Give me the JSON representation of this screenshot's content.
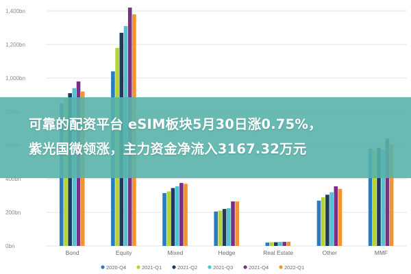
{
  "chart_data": {
    "type": "bar",
    "categories": [
      "Bond",
      "Equity",
      "Mixed",
      "Hedge",
      "Real Estate",
      "Other",
      "MMF"
    ],
    "series": [
      {
        "name": "2020-Q4",
        "color": "#2a7cc0",
        "values": [
          850,
          1040,
          315,
          205,
          20,
          270,
          580
        ]
      },
      {
        "name": "2021-Q1",
        "color": "#b6d334",
        "values": [
          880,
          1180,
          325,
          210,
          22,
          290,
          570
        ]
      },
      {
        "name": "2021-Q2",
        "color": "#203a5c",
        "values": [
          910,
          1270,
          345,
          220,
          22,
          305,
          585
        ]
      },
      {
        "name": "2021-Q3",
        "color": "#54c1d3",
        "values": [
          940,
          1310,
          355,
          225,
          24,
          320,
          575
        ]
      },
      {
        "name": "2021-Q4",
        "color": "#7a2f87",
        "values": [
          980,
          1420,
          375,
          265,
          24,
          355,
          640
        ]
      },
      {
        "name": "2022-Q1",
        "color": "#f39433",
        "values": [
          920,
          1380,
          370,
          265,
          25,
          340,
          605
        ]
      }
    ],
    "yticks": [
      "0bn",
      "200bn",
      "400bn",
      "600bn",
      "800bn",
      "1,000bn",
      "1,200bn",
      "1,400bn"
    ],
    "ylim": [
      0,
      1400
    ],
    "grid": true,
    "legend": "bottom"
  },
  "banner": {
    "line1": "可靠的配资平台 eSIM板块5月30日涨0.75%，",
    "line2": "紫光国微领涨，主力资金净流入3167.32万元"
  }
}
